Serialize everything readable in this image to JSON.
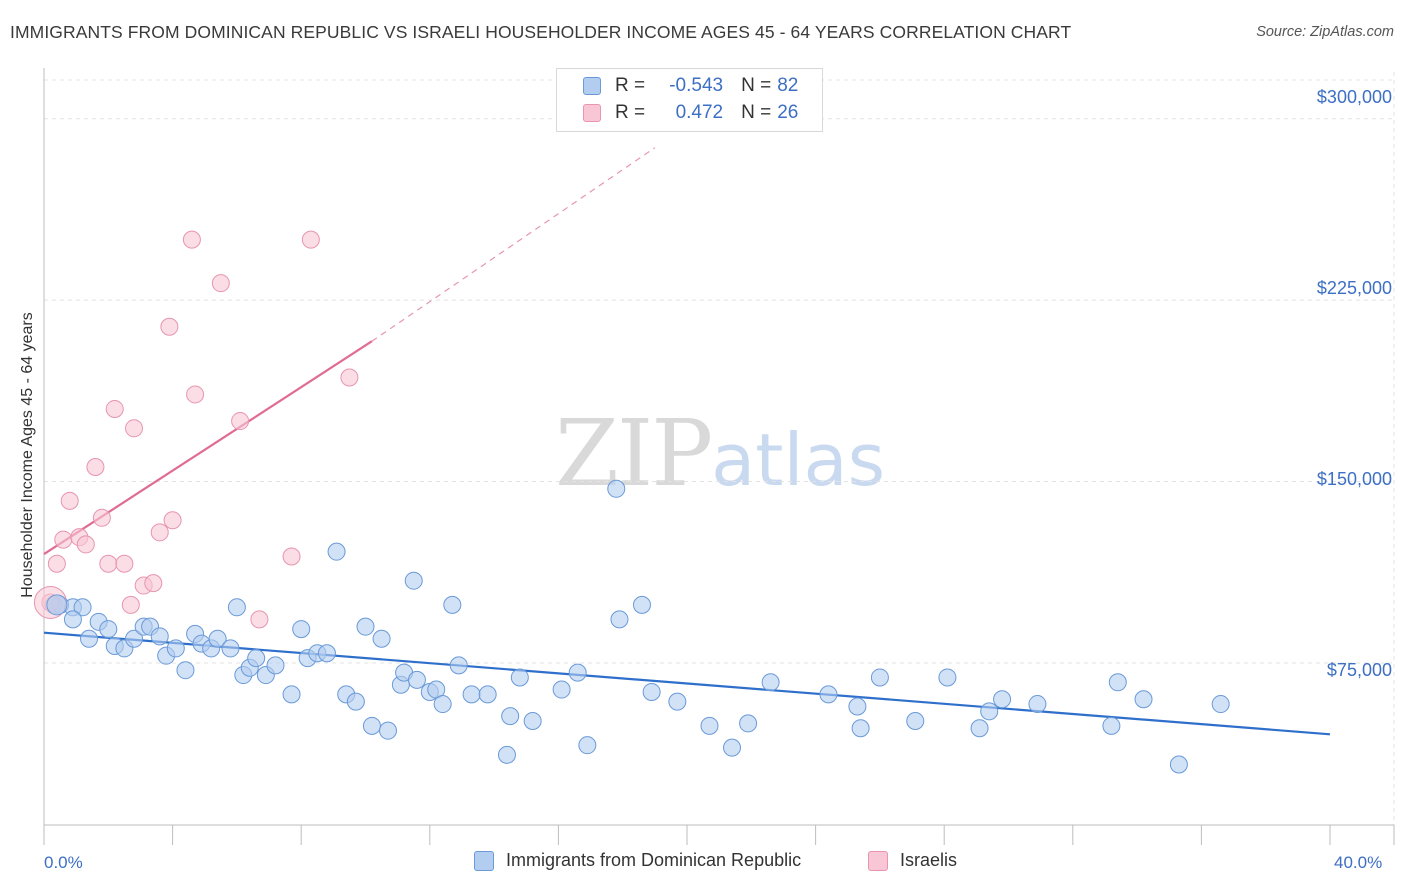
{
  "header": {
    "title": "IMMIGRANTS FROM DOMINICAN REPUBLIC VS ISRAELI HOUSEHOLDER INCOME AGES 45 - 64 YEARS CORRELATION CHART",
    "source": "Source: ZipAtlas.com"
  },
  "watermark": {
    "zip": "ZIP",
    "atlas": "atlas"
  },
  "legend": {
    "rows": [
      {
        "r_label": "R =",
        "r_value": "-0.543",
        "n_label": "N =",
        "n_value": "82"
      },
      {
        "r_label": "R =",
        "r_value": "0.472",
        "n_label": "N =",
        "n_value": "26"
      }
    ]
  },
  "bottom_legend": {
    "items": [
      {
        "label": "Immigrants from Dominican Republic"
      },
      {
        "label": "Israelis"
      }
    ]
  },
  "axes": {
    "x_min_label": "0.0%",
    "x_max_label": "40.0%",
    "y_tick_labels": [
      "$300,000",
      "$225,000",
      "$150,000",
      "$75,000"
    ]
  },
  "colors": {
    "blue_fill": "#b3cdf0",
    "blue_stroke": "#6a9ad8",
    "blue_line": "#2f6fcc",
    "pink_fill": "#f8c6d4",
    "pink_stroke": "#e795b0",
    "pink_line": "#e06b94",
    "accent_text": "#3d6fc4",
    "grid": "#e3e3e3"
  },
  "chart_data": {
    "type": "scatter",
    "title": "IMMIGRANTS FROM DOMINICAN REPUBLIC VS ISRAELI HOUSEHOLDER INCOME AGES 45 - 64 YEARS CORRELATION CHART",
    "xlabel": "",
    "ylabel": "Householder Income Ages 45 - 64 years",
    "xlim": [
      0,
      40
    ],
    "ylim": [
      8000,
      316000
    ],
    "y_ticks": [
      75000,
      150000,
      225000,
      300000
    ],
    "grid": true,
    "legend_position": "top-center",
    "series": [
      {
        "name": "Immigrants from Dominican Republic",
        "color": "#6a9ad8",
        "r": -0.543,
        "n": 82,
        "trend": {
          "x": [
            0,
            40
          ],
          "y": [
            87500,
            45500
          ]
        },
        "points": [
          [
            0.3,
            99000
          ],
          [
            0.5,
            99000
          ],
          [
            0.9,
            98000
          ],
          [
            1.2,
            98000
          ],
          [
            0.9,
            93000
          ],
          [
            1.4,
            85000
          ],
          [
            1.7,
            92000
          ],
          [
            2.0,
            89000
          ],
          [
            2.2,
            82000
          ],
          [
            2.5,
            81000
          ],
          [
            2.8,
            85000
          ],
          [
            3.1,
            90000
          ],
          [
            3.3,
            90000
          ],
          [
            3.6,
            86000
          ],
          [
            3.8,
            78000
          ],
          [
            4.1,
            81000
          ],
          [
            4.4,
            72000
          ],
          [
            4.7,
            87000
          ],
          [
            4.9,
            83000
          ],
          [
            5.2,
            81000
          ],
          [
            5.4,
            85000
          ],
          [
            5.8,
            81000
          ],
          [
            6.0,
            98000
          ],
          [
            6.2,
            70000
          ],
          [
            6.4,
            73000
          ],
          [
            6.6,
            77000
          ],
          [
            6.9,
            70000
          ],
          [
            7.2,
            74000
          ],
          [
            7.7,
            62000
          ],
          [
            8.0,
            89000
          ],
          [
            8.2,
            77000
          ],
          [
            8.5,
            79000
          ],
          [
            8.8,
            79000
          ],
          [
            9.1,
            121000
          ],
          [
            9.4,
            62000
          ],
          [
            9.7,
            59000
          ],
          [
            10.0,
            90000
          ],
          [
            10.2,
            49000
          ],
          [
            10.5,
            85000
          ],
          [
            10.7,
            47000
          ],
          [
            11.1,
            66000
          ],
          [
            11.2,
            71000
          ],
          [
            11.6,
            68000
          ],
          [
            11.5,
            109000
          ],
          [
            12.0,
            63000
          ],
          [
            12.2,
            64000
          ],
          [
            12.4,
            58000
          ],
          [
            12.7,
            99000
          ],
          [
            12.9,
            74000
          ],
          [
            13.3,
            62000
          ],
          [
            13.8,
            62000
          ],
          [
            14.4,
            37000
          ],
          [
            14.5,
            53000
          ],
          [
            14.8,
            69000
          ],
          [
            15.2,
            51000
          ],
          [
            16.1,
            64000
          ],
          [
            16.6,
            71000
          ],
          [
            16.9,
            41000
          ],
          [
            17.9,
            93000
          ],
          [
            17.8,
            147000
          ],
          [
            18.6,
            99000
          ],
          [
            18.9,
            63000
          ],
          [
            19.7,
            59000
          ],
          [
            20.7,
            49000
          ],
          [
            21.4,
            40000
          ],
          [
            21.9,
            50000
          ],
          [
            22.6,
            67000
          ],
          [
            24.4,
            62000
          ],
          [
            25.3,
            57000
          ],
          [
            25.4,
            48000
          ],
          [
            26.0,
            69000
          ],
          [
            27.1,
            51000
          ],
          [
            28.1,
            69000
          ],
          [
            29.1,
            48000
          ],
          [
            29.4,
            55000
          ],
          [
            29.8,
            60000
          ],
          [
            30.9,
            58000
          ],
          [
            33.4,
            67000
          ],
          [
            33.2,
            49000
          ],
          [
            34.2,
            60000
          ],
          [
            35.3,
            33000
          ],
          [
            36.6,
            58000
          ]
        ]
      },
      {
        "name": "Israelis",
        "color": "#e795b0",
        "r": 0.472,
        "n": 26,
        "trend": {
          "x": [
            0,
            10.2
          ],
          "y": [
            120000,
            208000
          ]
        },
        "trend_dashed": {
          "x": [
            10.2,
            19
          ],
          "y": [
            208000,
            288000
          ]
        },
        "points": [
          [
            0.2,
            100000
          ],
          [
            0.4,
            116000
          ],
          [
            0.6,
            126000
          ],
          [
            0.8,
            142000
          ],
          [
            1.1,
            127000
          ],
          [
            1.3,
            124000
          ],
          [
            1.6,
            156000
          ],
          [
            1.8,
            135000
          ],
          [
            2.0,
            116000
          ],
          [
            2.2,
            180000
          ],
          [
            2.5,
            116000
          ],
          [
            2.7,
            99000
          ],
          [
            2.8,
            172000
          ],
          [
            3.1,
            107000
          ],
          [
            3.4,
            108000
          ],
          [
            3.6,
            129000
          ],
          [
            3.9,
            214000
          ],
          [
            4.0,
            134000
          ],
          [
            4.6,
            250000
          ],
          [
            4.7,
            186000
          ],
          [
            5.5,
            232000
          ],
          [
            6.1,
            175000
          ],
          [
            6.7,
            93000
          ],
          [
            7.7,
            119000
          ],
          [
            8.3,
            250000
          ],
          [
            9.5,
            193000
          ]
        ]
      }
    ]
  }
}
